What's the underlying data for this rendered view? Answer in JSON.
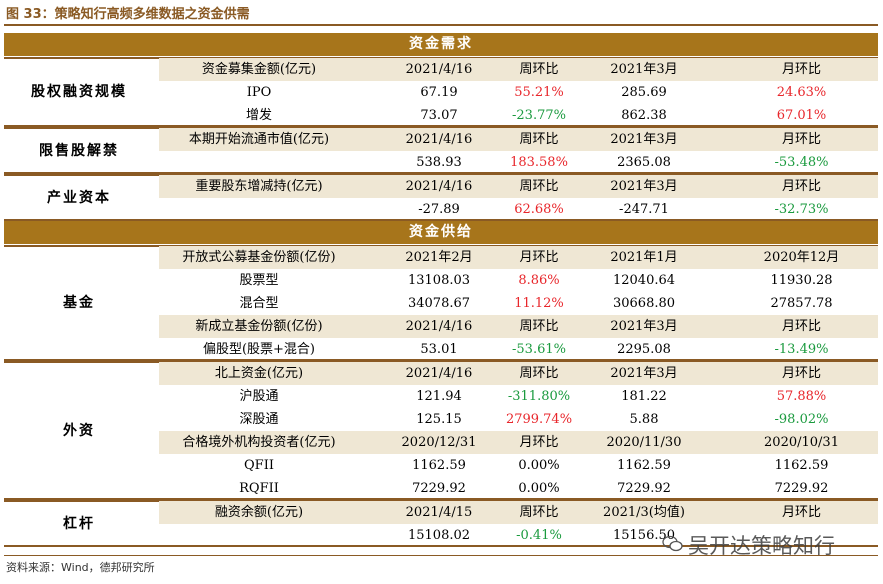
{
  "title": "图 33：策略知行高频多维数据之资金供需",
  "source": "资料来源：Wind，德邦研究所",
  "watermark": "吴开达策略知行",
  "demand": {
    "header": "资金需求",
    "equity": {
      "name": "股权融资规模",
      "head": [
        "资金募集金额(亿元)",
        "2021/4/16",
        "周环比",
        "2021年3月",
        "月环比"
      ],
      "rows": [
        [
          "IPO",
          "67.19",
          "55.21%",
          "285.69",
          "24.63%"
        ],
        [
          "增发",
          "73.07",
          "-23.77%",
          "862.38",
          "67.01%"
        ]
      ]
    },
    "lockup": {
      "name": "限售股解禁",
      "head": [
        "本期开始流通市值(亿元)",
        "2021/4/16",
        "周环比",
        "2021年3月",
        "月环比"
      ],
      "row": [
        "",
        "538.93",
        "183.58%",
        "2365.08",
        "-53.48%"
      ]
    },
    "industry": {
      "name": "产业资本",
      "head": [
        "重要股东增减持(亿元)",
        "2021/4/16",
        "周环比",
        "2021年3月",
        "月环比"
      ],
      "row": [
        "",
        "-27.89",
        "62.68%",
        "-247.71",
        "-32.73%"
      ]
    }
  },
  "supply": {
    "header": "资金供给",
    "fund": {
      "name": "基金",
      "head1": [
        "开放式公募基金份额(亿份)",
        "2021年2月",
        "月环比",
        "2021年1月",
        "2020年12月"
      ],
      "rows1": [
        [
          "股票型",
          "13108.03",
          "8.86%",
          "12040.64",
          "11930.28"
        ],
        [
          "混合型",
          "34078.67",
          "11.12%",
          "30668.80",
          "27857.78"
        ]
      ],
      "head2": [
        "新成立基金份额(亿份)",
        "2021/4/16",
        "周环比",
        "2021年3月",
        "月环比"
      ],
      "row2": [
        "偏股型(股票+混合)",
        "53.01",
        "-53.61%",
        "2295.08",
        "-13.49%"
      ]
    },
    "foreign": {
      "name": "外资",
      "head1": [
        "北上资金(亿元)",
        "2021/4/16",
        "周环比",
        "2021年3月",
        "月环比"
      ],
      "rows1": [
        [
          "沪股通",
          "121.94",
          "-311.80%",
          "181.22",
          "57.88%"
        ],
        [
          "深股通",
          "125.15",
          "2799.74%",
          "5.88",
          "-98.02%"
        ]
      ],
      "head2": [
        "合格境外机构投资者(亿元)",
        "2020/12/31",
        "月环比",
        "2020/11/30",
        "2020/10/31"
      ],
      "rows2": [
        [
          "QFII",
          "1162.59",
          "0.00%",
          "1162.59",
          "1162.59"
        ],
        [
          "RQFII",
          "7229.92",
          "0.00%",
          "7229.92",
          "7229.92"
        ]
      ]
    },
    "leverage": {
      "name": "杠杆",
      "head": [
        "融资余额(亿元)",
        "2021/4/15",
        "周环比",
        "2021/3(均值)",
        "月环比"
      ],
      "row": [
        "",
        "15108.02",
        "-0.41%",
        "15156.50",
        ""
      ]
    }
  }
}
